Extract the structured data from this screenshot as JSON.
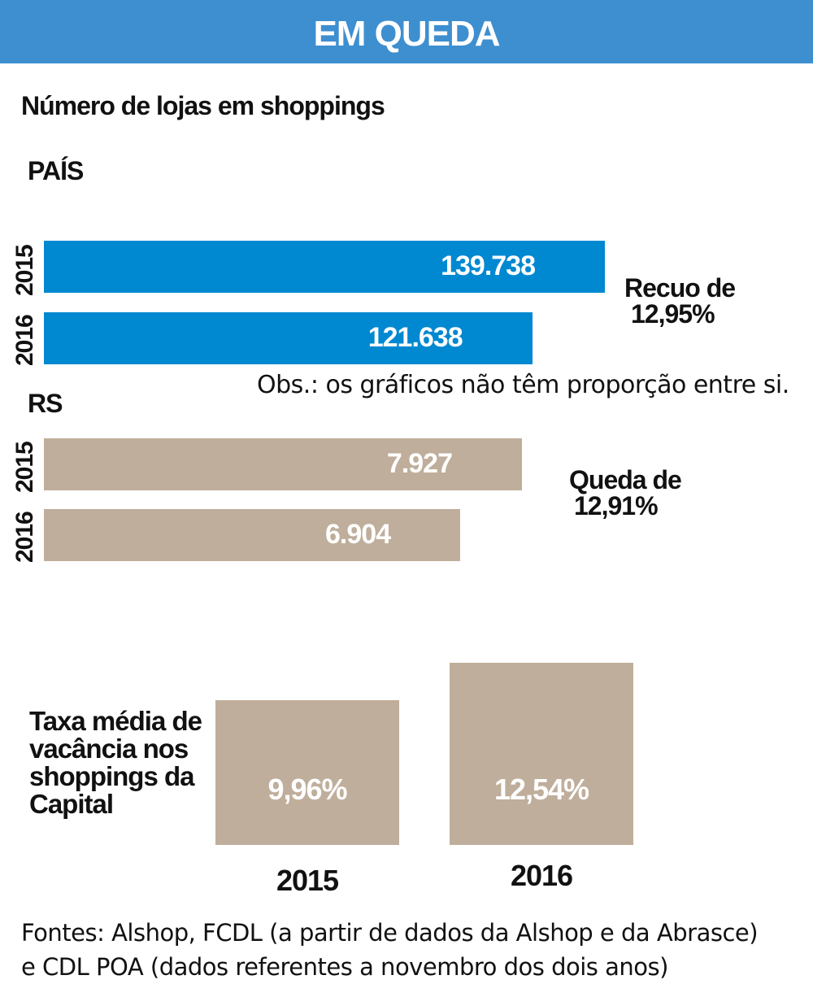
{
  "header": {
    "title": "EM QUEDA"
  },
  "subtitle": "Número de lojas em shoppings",
  "note": "Obs.: os gráficos não têm proporção entre si.",
  "sources": {
    "line1": "Fontes: Alshop, FCDL (a partir de dados da Alshop e da Abrasce)",
    "line2": "e CDL POA (dados referentes a novembro dos dois anos)"
  },
  "colors": {
    "banner": "#3e8fd0",
    "blue_bar": "#0088d1",
    "tan_bar": "#bfae9b"
  },
  "chart_data": [
    {
      "type": "bar",
      "orientation": "horizontal",
      "title": "PAÍS",
      "categories": [
        "2015",
        "2016"
      ],
      "values": [
        139738,
        121638
      ],
      "value_labels": [
        "139.738",
        "121.638"
      ],
      "change_label": {
        "line1": "Recuo de",
        "line2": "12,95%"
      }
    },
    {
      "type": "bar",
      "orientation": "horizontal",
      "title": "RS",
      "categories": [
        "2015",
        "2016"
      ],
      "values": [
        7927,
        6904
      ],
      "value_labels": [
        "7.927",
        "6.904"
      ],
      "change_label": {
        "line1": "Queda de",
        "line2": "12,91%"
      }
    },
    {
      "type": "bar",
      "orientation": "vertical",
      "title": "Taxa média de vacância nos shoppings da Capital",
      "categories": [
        "2015",
        "2016"
      ],
      "values": [
        9.96,
        12.54
      ],
      "value_labels": [
        "9,96%",
        "12,54%"
      ]
    }
  ]
}
